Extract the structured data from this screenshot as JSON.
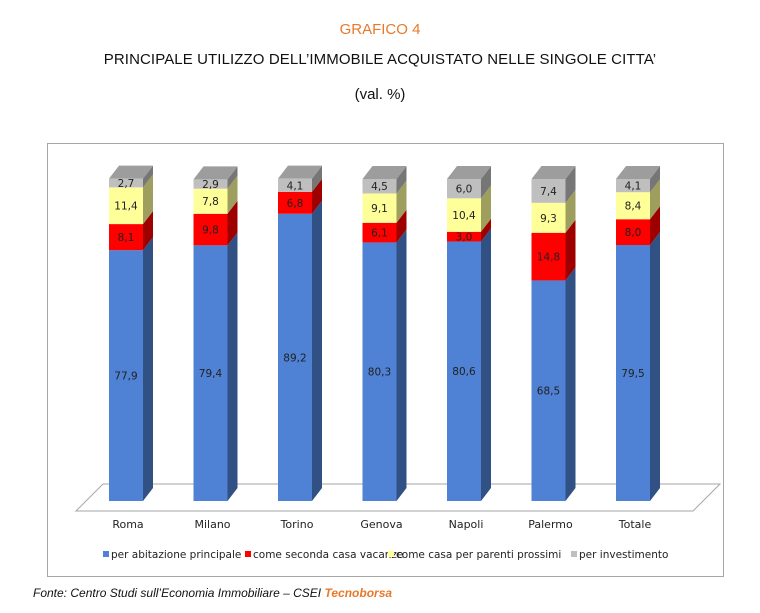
{
  "header": {
    "label": "GRAFICO 4",
    "title": "PRINCIPALE UTILIZZO DELL’IMMOBILE ACQUISTATO NELLE SINGOLE CITTA’",
    "subtitle": "(val. %)"
  },
  "colors": {
    "accent": "#e8792b",
    "series": [
      "#4f81d4",
      "#ff0000",
      "#ffff99",
      "#bfbfbf"
    ]
  },
  "chart_data": {
    "type": "bar",
    "stacked": true,
    "three_d": true,
    "categories": [
      "Roma",
      "Milano",
      "Torino",
      "Genova",
      "Napoli",
      "Palermo",
      "Totale"
    ],
    "series": [
      {
        "name": "per abitazione principale",
        "values": [
          77.9,
          79.4,
          89.2,
          80.3,
          80.6,
          68.5,
          79.5
        ],
        "labels": [
          "77,9",
          "79,4",
          "89,2",
          "80,3",
          "80,6",
          "68,5",
          "79,5"
        ]
      },
      {
        "name": "come seconda casa vacanze",
        "values": [
          8.1,
          9.8,
          6.8,
          6.1,
          3.0,
          14.8,
          8.0
        ],
        "labels": [
          "8,1",
          "9,8",
          "6,8",
          "6,1",
          "3,0",
          "14,8",
          "8,0"
        ]
      },
      {
        "name": "come casa per parenti prossimi",
        "values": [
          11.4,
          7.8,
          null,
          9.1,
          10.4,
          9.3,
          8.4
        ],
        "labels": [
          "11,4",
          "7,8",
          null,
          "9,1",
          "10,4",
          "9,3",
          "8,4"
        ]
      },
      {
        "name": "per investimento",
        "values": [
          2.7,
          2.9,
          4.1,
          4.5,
          6.0,
          7.4,
          4.1
        ],
        "labels": [
          "2,7",
          "2,9",
          "4,1",
          "4,5",
          "6,0",
          "7,4",
          "4,1"
        ]
      }
    ],
    "ylim": [
      0,
      100
    ],
    "grid": false,
    "legend_position": "bottom"
  },
  "source": {
    "text": "Fonte: Centro Studi sull’Economia Immobiliare  – CSEI ",
    "brand": "Tecnoborsa"
  }
}
